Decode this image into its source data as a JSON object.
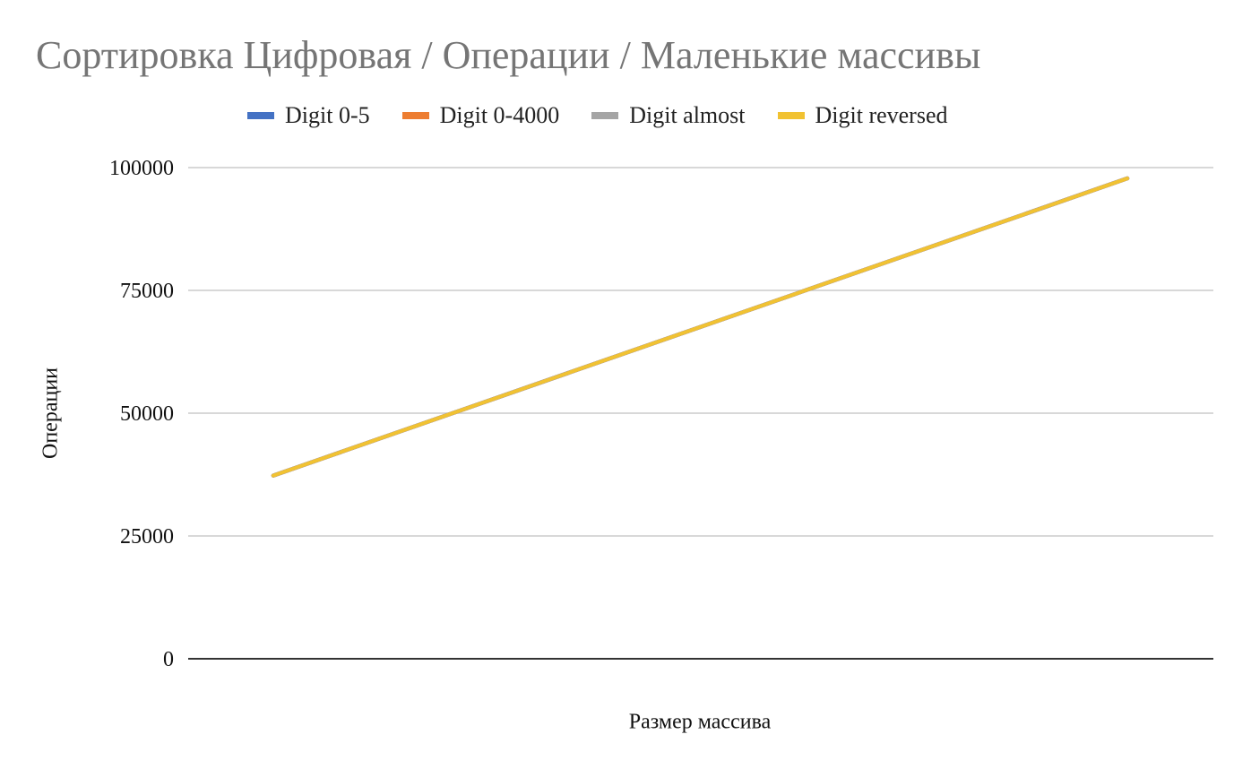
{
  "chart_data": {
    "type": "line",
    "title": "Сортировка Цифровая / Операции / Маленькие массивы",
    "xlabel": "Размер массива",
    "ylabel": "Операции",
    "ylim": [
      0,
      100000
    ],
    "yticks": [
      "0",
      "25000",
      "50000",
      "75000",
      "100000"
    ],
    "grid": true,
    "legend_position": "top",
    "x": [
      1,
      2
    ],
    "series": [
      {
        "name": "Digit 0-5",
        "color": "#4472c4",
        "values": [
          37300,
          97800
        ]
      },
      {
        "name": "Digit 0-4000",
        "color": "#ed7d31",
        "values": [
          37300,
          97800
        ]
      },
      {
        "name": "Digit almost",
        "color": "#a5a5a5",
        "values": [
          37300,
          97800
        ]
      },
      {
        "name": "Digit reversed",
        "color": "#f1c232",
        "values": [
          37300,
          97800
        ]
      }
    ]
  }
}
